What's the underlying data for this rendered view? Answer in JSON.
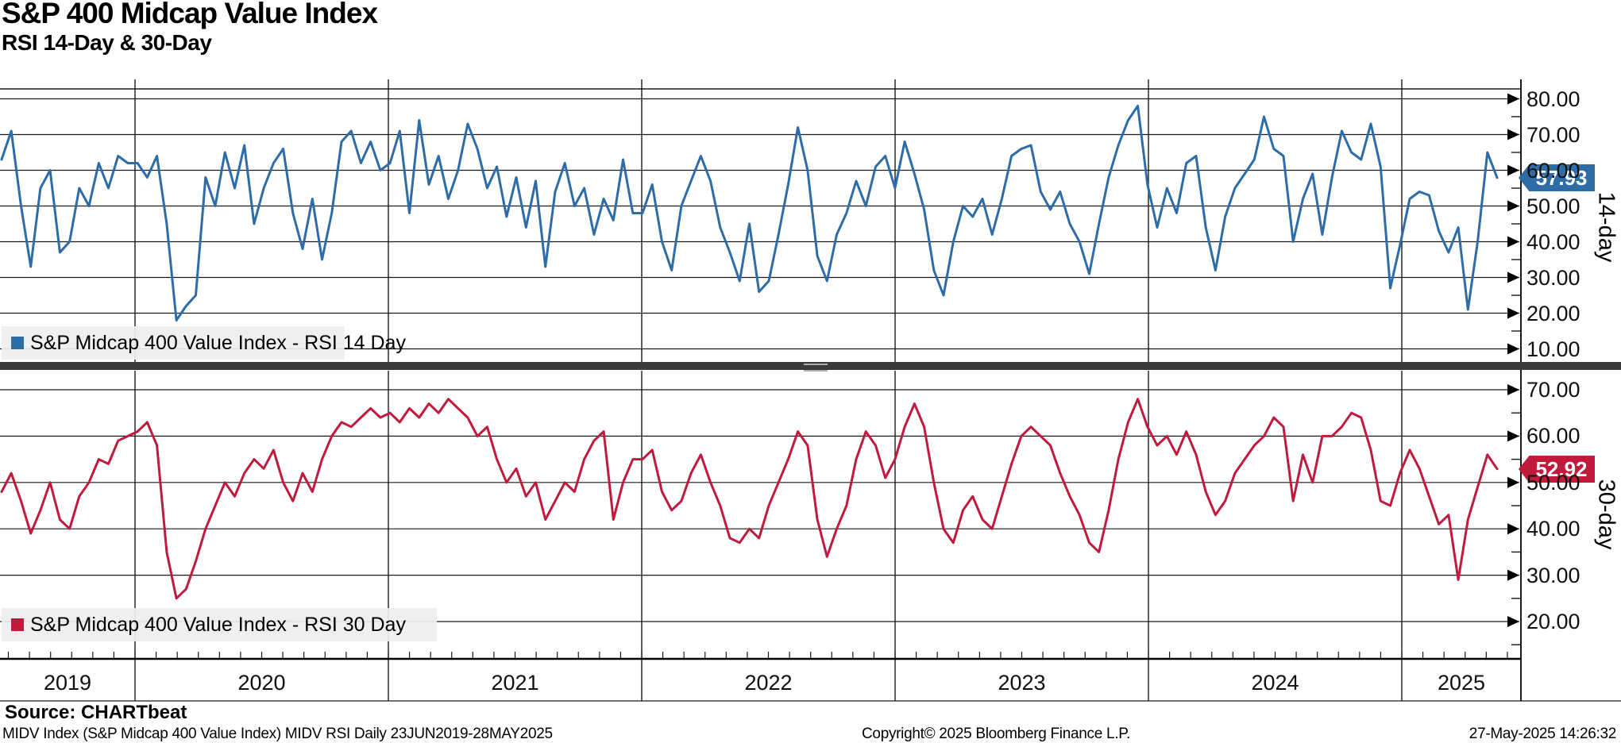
{
  "title": "S&P 400 Midcap Value Index",
  "subtitle": "RSI 14-Day & 30-Day",
  "panels": {
    "top": {
      "legend": "S&P Midcap 400 Value Index - RSI 14 Day",
      "axis_title": "14-day",
      "last_value_label": "57.93",
      "line_color": "#2e6ca8",
      "badge_color": "#2e6ca8",
      "y_tick_labels": [
        "80.00",
        "70.00",
        "60.00",
        "50.00",
        "40.00",
        "30.00",
        "20.00",
        "10.00"
      ],
      "y_tick_values": [
        80,
        70,
        60,
        50,
        40,
        30,
        20,
        10
      ],
      "y_minor_values": [
        75,
        65,
        55,
        45,
        35,
        25,
        15
      ]
    },
    "bottom": {
      "legend": "S&P Midcap 400 Value Index - RSI 30 Day",
      "axis_title": "30-day",
      "last_value_label": "52.92",
      "line_color": "#c01a3c",
      "badge_color": "#c01a3c",
      "y_tick_labels": [
        "70.00",
        "60.00",
        "50.00",
        "40.00",
        "30.00",
        "20.00"
      ],
      "y_tick_values": [
        70,
        60,
        50,
        40,
        30,
        20
      ],
      "y_minor_values": [
        65,
        55,
        45,
        35,
        25,
        15
      ]
    }
  },
  "x_axis": {
    "year_labels": [
      "2019",
      "2020",
      "2021",
      "2022",
      "2023",
      "2024",
      "2025"
    ]
  },
  "footer": {
    "source": "Source: CHARTbeat",
    "description": "MIDV Index (S&P Midcap 400 Value Index) MIDV RSI  Daily 23JUN2019-28MAY2025",
    "copyright": "Copyright© 2025 Bloomberg Finance L.P.",
    "timestamp": "27-May-2025 14:26:32"
  },
  "chart_data": [
    {
      "type": "line",
      "name": "S&P Midcap 400 Value Index - RSI 14 Day",
      "x_start": "2019-06-23",
      "x_end": "2025-05-28",
      "sampling": "biweekly",
      "ylim": [
        10,
        80
      ],
      "last_value": 57.93,
      "values": [
        63,
        71,
        50,
        33,
        55,
        60,
        37,
        40,
        55,
        50,
        62,
        55,
        64,
        62,
        62,
        58,
        64,
        45,
        18,
        22,
        25,
        58,
        50,
        65,
        55,
        67,
        45,
        55,
        62,
        66,
        48,
        38,
        52,
        35,
        48,
        68,
        71,
        62,
        68,
        60,
        62,
        71,
        48,
        74,
        56,
        64,
        52,
        60,
        73,
        66,
        55,
        61,
        47,
        58,
        44,
        57,
        33,
        54,
        62,
        50,
        55,
        42,
        52,
        46,
        63,
        48,
        48,
        56,
        40,
        32,
        50,
        57,
        64,
        57,
        44,
        37,
        29,
        45,
        26,
        29,
        42,
        56,
        72,
        60,
        36,
        29,
        42,
        48,
        57,
        50,
        61,
        64,
        55,
        68,
        59,
        49,
        32,
        25,
        40,
        50,
        47,
        52,
        42,
        52,
        64,
        66,
        67,
        54,
        49,
        54,
        45,
        40,
        31,
        45,
        58,
        67,
        74,
        78,
        56,
        44,
        55,
        48,
        62,
        64,
        44,
        32,
        47,
        55,
        59,
        63,
        75,
        66,
        64,
        40,
        52,
        59,
        42,
        58,
        71,
        65,
        63,
        73,
        61,
        27,
        39,
        52,
        54,
        53,
        43,
        37,
        44,
        21,
        40,
        65,
        57.93
      ]
    },
    {
      "type": "line",
      "name": "S&P Midcap 400 Value Index - RSI 30 Day",
      "x_start": "2019-06-23",
      "x_end": "2025-05-28",
      "sampling": "biweekly",
      "ylim": [
        20,
        70
      ],
      "last_value": 52.92,
      "values": [
        48,
        52,
        46,
        39,
        44,
        50,
        42,
        40,
        47,
        50,
        55,
        54,
        59,
        60,
        61,
        63,
        58,
        35,
        25,
        27,
        33,
        40,
        45,
        50,
        47,
        52,
        55,
        53,
        57,
        50,
        46,
        52,
        48,
        55,
        60,
        63,
        62,
        64,
        66,
        64,
        65,
        63,
        66,
        64,
        67,
        65,
        68,
        66,
        64,
        60,
        62,
        55,
        50,
        53,
        47,
        50,
        42,
        46,
        50,
        48,
        55,
        59,
        61,
        42,
        50,
        55,
        55,
        57,
        48,
        44,
        46,
        52,
        56,
        50,
        45,
        38,
        37,
        40,
        38,
        45,
        50,
        55,
        61,
        58,
        42,
        34,
        40,
        45,
        55,
        61,
        58,
        51,
        55,
        62,
        67,
        62,
        50,
        40,
        37,
        44,
        47,
        42,
        40,
        47,
        54,
        60,
        62,
        60,
        58,
        52,
        47,
        43,
        37,
        35,
        44,
        55,
        63,
        68,
        62,
        58,
        60,
        56,
        61,
        56,
        48,
        43,
        46,
        52,
        55,
        58,
        60,
        64,
        62,
        46,
        56,
        50,
        60,
        60,
        62,
        65,
        64,
        57,
        46,
        45,
        52,
        57,
        53,
        47,
        41,
        43,
        29,
        42,
        49,
        56,
        52.92
      ]
    }
  ]
}
